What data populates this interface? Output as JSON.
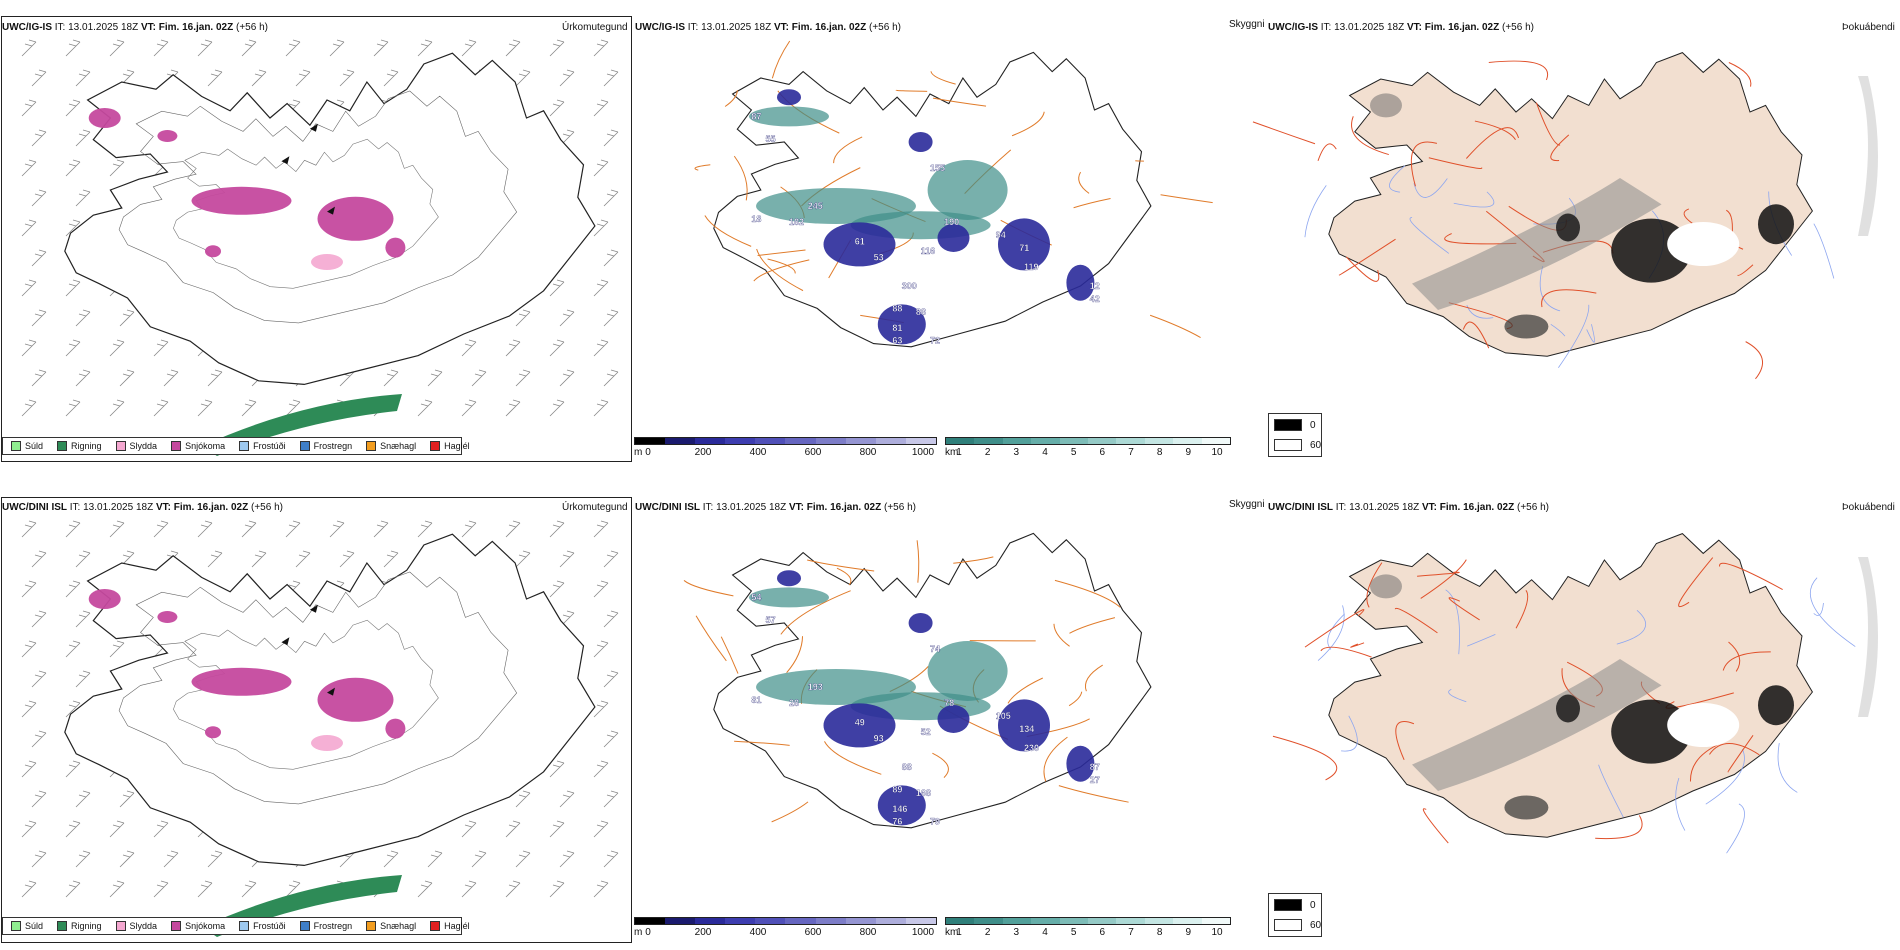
{
  "rows": [
    {
      "precip": {
        "model": "UWC/IG-IS",
        "init": "IT: 13.01.2025 18Z",
        "valid": "VT: Fim. 16.jan. 02Z",
        "lead": "(+56 h)",
        "corner": "Úrkomutegund"
      },
      "cloud": {
        "model": "UWC/IG-IS",
        "init": "IT: 13.01.2025 18Z",
        "valid": "VT: Fim. 16.jan. 02Z",
        "lead": "(+56 h)",
        "corner": "Skyggni",
        "labels": [
          "245",
          "182",
          "18",
          "61",
          "53",
          "116",
          "94",
          "71",
          "119",
          "190",
          "155",
          "300",
          "88",
          "81",
          "88",
          "63",
          "72",
          "87",
          "55",
          "12",
          "42"
        ]
      },
      "fog": {
        "model": "UWC/IG-IS",
        "init": "IT: 13.01.2025 18Z",
        "valid": "VT: Fim. 16.jan. 02Z",
        "lead": "(+56 h)",
        "corner": "Þokuábendi"
      }
    },
    {
      "precip": {
        "model": "UWC/DINI ISL",
        "init": "IT: 13.01.2025 18Z",
        "valid": "VT: Fim. 16.jan. 02Z",
        "lead": "(+56 h)",
        "corner": "Úrkomutegund"
      },
      "cloud": {
        "model": "UWC/DINI ISL",
        "init": "IT: 13.01.2025 18Z",
        "valid": "VT: Fim. 16.jan. 02Z",
        "lead": "(+56 h)",
        "corner": "Skyggni",
        "labels": [
          "193",
          "28",
          "81",
          "49",
          "93",
          "52",
          "105",
          "134",
          "230",
          "78",
          "74",
          "88",
          "89",
          "146",
          "168",
          "76",
          "79",
          "54",
          "57",
          "87",
          "27"
        ]
      },
      "fog": {
        "model": "UWC/DINI ISL",
        "init": "IT: 13.01.2025 18Z",
        "valid": "VT: Fim. 16.jan. 02Z",
        "lead": "(+56 h)",
        "corner": "Þokuábendi"
      }
    }
  ],
  "precip_legend": [
    {
      "label": "Súld",
      "color": "#90ee90"
    },
    {
      "label": "Rigning",
      "color": "#2e8b57"
    },
    {
      "label": "Slydda",
      "color": "#f4a7d0"
    },
    {
      "label": "Snjókoma",
      "color": "#c5499e"
    },
    {
      "label": "Frostúði",
      "color": "#9ec9f0"
    },
    {
      "label": "Frostregn",
      "color": "#3f7fc8"
    },
    {
      "label": "Snæhagl",
      "color": "#f29d1f"
    },
    {
      "label": "Haglél",
      "color": "#e02020"
    }
  ],
  "ceiling_bar": {
    "unit": "m",
    "ticks": [
      "0",
      "200",
      "400",
      "600",
      "800",
      "1000"
    ],
    "colors": [
      "#000000",
      "#1a1a6e",
      "#2a2a9a",
      "#3d3db0",
      "#5050b8",
      "#6666c0",
      "#7d7dc8",
      "#9595d2",
      "#aeaedc",
      "#c8c8e8"
    ]
  },
  "vis_bar": {
    "unit": "km",
    "ticks": [
      "1",
      "2",
      "3",
      "4",
      "5",
      "6",
      "7",
      "8",
      "9",
      "10"
    ],
    "colors": [
      "#2f7f7a",
      "#3f8e89",
      "#52a09a",
      "#66aea9",
      "#7dbcb7",
      "#95cac6",
      "#addad6",
      "#c4e6e3",
      "#dbf1ef",
      "#f1faf9"
    ]
  },
  "fog_legend": {
    "high": "0",
    "low": "60"
  }
}
